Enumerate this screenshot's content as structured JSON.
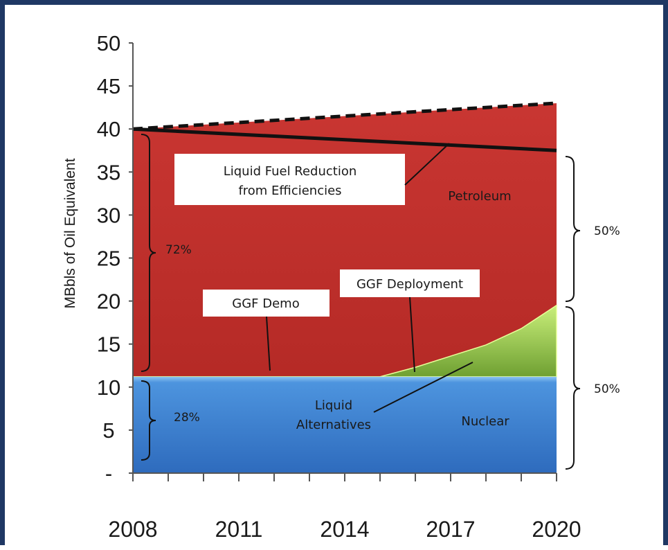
{
  "chart_data": {
    "type": "area",
    "ylabel": "MBbls of Oil Equivalent",
    "xlabel": "",
    "x_ticks": [
      "2008",
      "2011",
      "2014",
      "2017",
      "2020"
    ],
    "x_range": [
      2008,
      2020
    ],
    "y_ticks": [
      "-",
      "5",
      "10",
      "15",
      "20",
      "25",
      "30",
      "35",
      "40",
      "45",
      "50"
    ],
    "ylim": [
      0,
      50
    ],
    "grid": false,
    "series": [
      {
        "name": "Nuclear",
        "color": "#3a7fd0",
        "x": [
          2008,
          2020
        ],
        "y": [
          11.2,
          11.2
        ]
      },
      {
        "name": "GGF Deployment",
        "color": "#8fc04b",
        "x": [
          2008,
          2015,
          2016,
          2017,
          2018,
          2019,
          2020
        ],
        "y_top": [
          11.2,
          11.2,
          12.3,
          13.6,
          14.9,
          16.8,
          19.5
        ]
      },
      {
        "name": "Petroleum",
        "color": "#c0302c",
        "x": [
          2008,
          2020
        ],
        "y_top": [
          40,
          43
        ]
      }
    ],
    "reference_lines": [
      {
        "style": "dashed",
        "x": [
          2008,
          2020
        ],
        "y": [
          40,
          43
        ]
      },
      {
        "style": "solid",
        "x": [
          2008,
          2020
        ],
        "y": [
          40,
          37.5
        ]
      }
    ],
    "annotations": {
      "efficiency_line1": "Liquid Fuel Reduction",
      "efficiency_line2": "from Efficiencies",
      "petroleum": "Petroleum",
      "ggf_demo": "GGF Demo",
      "ggf_deployment": "GGF Deployment",
      "liquid_alt_line1": "Liquid",
      "liquid_alt_line2": "Alternatives",
      "nuclear": "Nuclear",
      "pct_72": "72%",
      "pct_28": "28%",
      "pct_50_top": "50%",
      "pct_50_bottom": "50%"
    }
  }
}
